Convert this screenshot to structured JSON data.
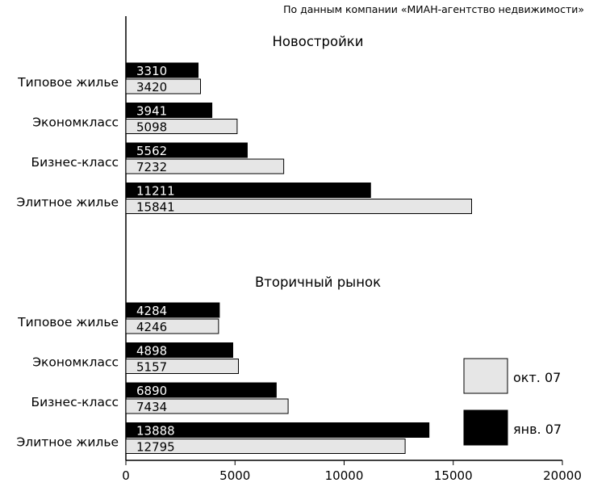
{
  "source_note": "По данным компании «МИАН-агентство недвижимости»",
  "chart_data": {
    "type": "bar",
    "orientation": "horizontal",
    "xlim": [
      0,
      20000
    ],
    "x_ticks": [
      0,
      5000,
      10000,
      15000,
      20000
    ],
    "grid": false,
    "legend_position": "bottom-right",
    "series_colors": {
      "окт. 07": "#e6e6e6",
      "янв. 07": "#000000"
    },
    "panels": [
      {
        "title": "Новостройки",
        "categories": [
          "Типовое жилье",
          "Экономкласс",
          "Бизнес-класс",
          "Элитное жилье"
        ],
        "series": [
          {
            "name": "янв. 07",
            "values": [
              3310,
              3941,
              5562,
              11211
            ]
          },
          {
            "name": "окт. 07",
            "values": [
              3420,
              5098,
              7232,
              15841
            ]
          }
        ]
      },
      {
        "title": "Вторичный рынок",
        "categories": [
          "Типовое жилье",
          "Экономкласс",
          "Бизнес-класс",
          "Элитное жилье"
        ],
        "series": [
          {
            "name": "янв. 07",
            "values": [
              4284,
              4898,
              6890,
              13888
            ]
          },
          {
            "name": "окт. 07",
            "values": [
              4246,
              5157,
              7434,
              12795
            ]
          }
        ]
      }
    ],
    "legend": [
      {
        "label": "окт. 07",
        "color": "#e6e6e6"
      },
      {
        "label": "янв. 07",
        "color": "#000000"
      }
    ]
  }
}
